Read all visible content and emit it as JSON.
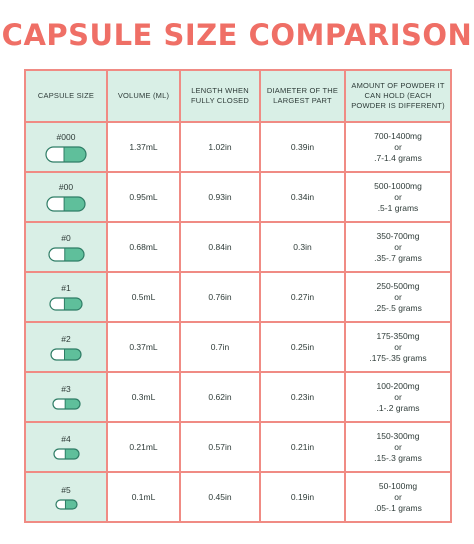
{
  "title": "CAPSULE SIZE COMPARISON",
  "headers": {
    "capsule_size": "CAPSULE SIZE",
    "volume": "VOLUME (ML)",
    "length": "LENGTH WHEN FULLY CLOSED",
    "diameter": "DIAMETER OF THE LARGEST PART",
    "amount": "AMOUNT OF POWDER IT CAN HOLD (EACH POWDER IS DIFFERENT)"
  },
  "colors": {
    "title": "#ef6f66",
    "border": "#f08b84",
    "header_bg": "#d9efe6",
    "capsule_green": "#5fbf9b",
    "capsule_outline": "#2f7d66"
  },
  "rows": [
    {
      "size": "#000",
      "volume": "1.37mL",
      "length": "1.02in",
      "diameter": "0.39in",
      "amount_line1": "700-1400mg",
      "amount_or": "or",
      "amount_line2": ".7-1.4 grams"
    },
    {
      "size": "#00",
      "volume": "0.95mL",
      "length": "0.93in",
      "diameter": "0.34in",
      "amount_line1": "500-1000mg",
      "amount_or": "or",
      "amount_line2": ".5-1 grams"
    },
    {
      "size": "#0",
      "volume": "0.68mL",
      "length": "0.84in",
      "diameter": "0.3in",
      "amount_line1": "350-700mg",
      "amount_or": "or",
      "amount_line2": ".35-.7 grams"
    },
    {
      "size": "#1",
      "volume": "0.5mL",
      "length": "0.76in",
      "diameter": "0.27in",
      "amount_line1": "250-500mg",
      "amount_or": "or",
      "amount_line2": ".25-.5 grams"
    },
    {
      "size": "#2",
      "volume": "0.37mL",
      "length": "0.7in",
      "diameter": "0.25in",
      "amount_line1": "175-350mg",
      "amount_or": "or",
      "amount_line2": ".175-.35 grams"
    },
    {
      "size": "#3",
      "volume": "0.3mL",
      "length": "0.62in",
      "diameter": "0.23in",
      "amount_line1": "100-200mg",
      "amount_or": "or",
      "amount_line2": ".1-.2 grams"
    },
    {
      "size": "#4",
      "volume": "0.21mL",
      "length": "0.57in",
      "diameter": "0.21in",
      "amount_line1": "150-300mg",
      "amount_or": "or",
      "amount_line2": ".15-.3 grams"
    },
    {
      "size": "#5",
      "volume": "0.1mL",
      "length": "0.45in",
      "diameter": "0.19in",
      "amount_line1": "50-100mg",
      "amount_or": "or",
      "amount_line2": ".05-.1 grams"
    }
  ]
}
